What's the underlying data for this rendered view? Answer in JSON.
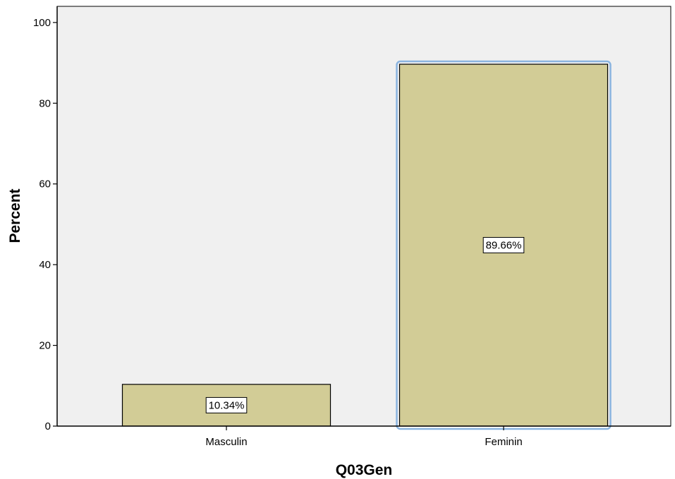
{
  "chart_data": {
    "type": "bar",
    "categories": [
      "Masculin",
      "Feminin"
    ],
    "values": [
      10.34,
      89.66
    ],
    "data_labels": [
      "10.34%",
      "89.66%"
    ],
    "title": "",
    "xlabel": "Q03Gen",
    "ylabel": "Percent",
    "ylim": [
      0,
      104
    ],
    "yticks": [
      "0",
      "20",
      "40",
      "60",
      "80",
      "100"
    ],
    "ytick_values": [
      0,
      20,
      40,
      60,
      80,
      100
    ],
    "grid": false,
    "legend": "none",
    "selected_category": "Feminin"
  },
  "colors": {
    "plot_background": "#f0f0f0",
    "bar_fill": "#d2cc96",
    "bar_stroke": "#000000",
    "selection_outline": "#8ab4e0",
    "axis": "#000000"
  }
}
